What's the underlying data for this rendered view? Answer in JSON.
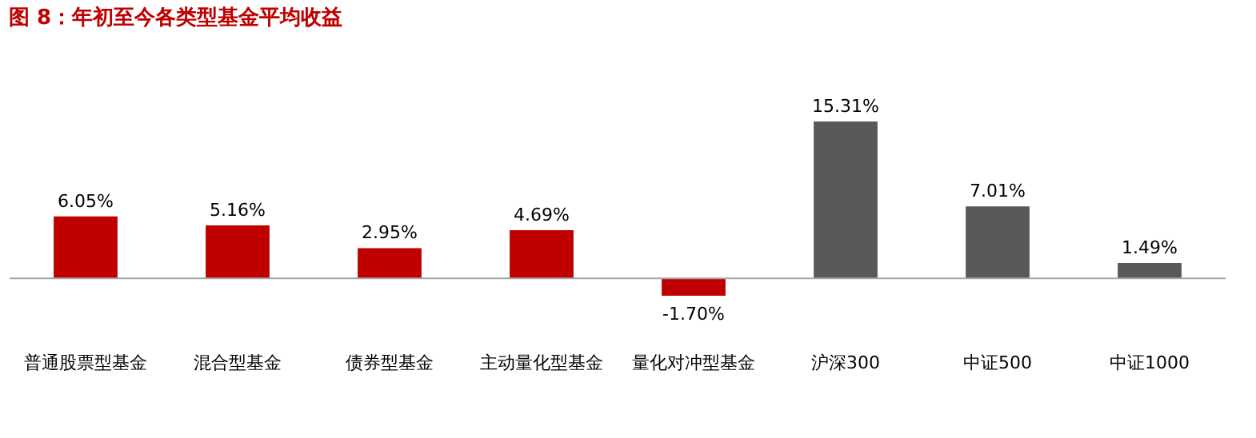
{
  "chart_data": {
    "type": "bar",
    "title": "图 8：年初至今各类型基金平均收益",
    "categories": [
      "普通股票型基金",
      "混合型基金",
      "债券型基金",
      "主动量化型基金",
      "量化对冲型基金",
      "沪深300",
      "中证500",
      "中证1000"
    ],
    "values": [
      6.05,
      5.16,
      2.95,
      4.69,
      -1.7,
      15.31,
      7.01,
      1.49
    ],
    "colors": [
      "#c00000",
      "#c00000",
      "#c00000",
      "#c00000",
      "#c00000",
      "#595959",
      "#595959",
      "#595959"
    ],
    "value_labels": [
      "6.05%",
      "5.16%",
      "2.95%",
      "4.69%",
      "-1.70%",
      "15.31%",
      "7.01%",
      "1.49%"
    ],
    "grid": false
  }
}
